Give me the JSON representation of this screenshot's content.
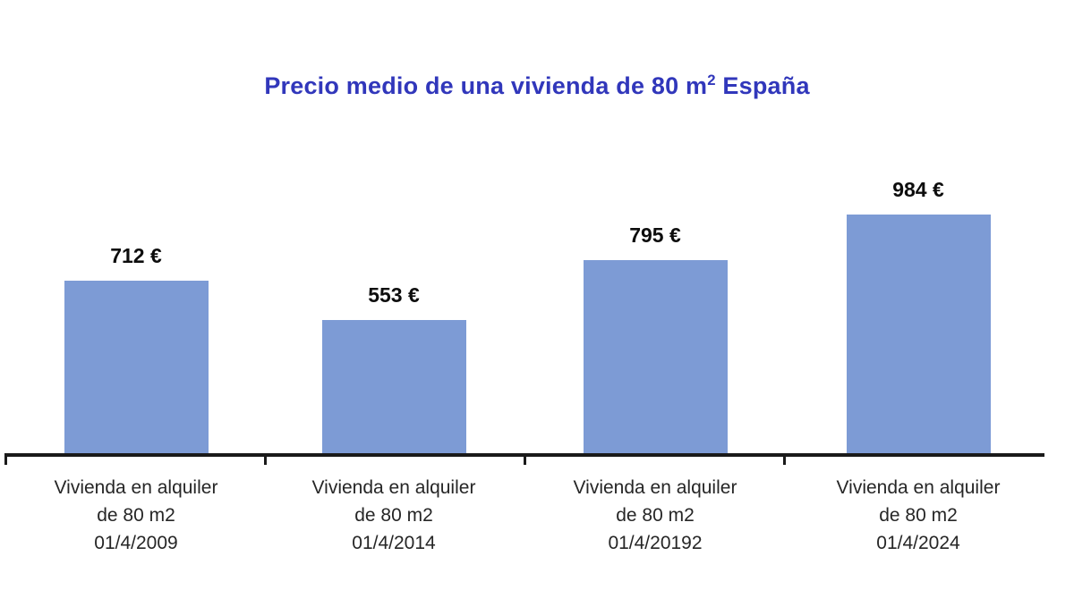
{
  "title": {
    "pre": "Precio medio de una vivienda de 80 m",
    "sup": "2",
    "post": " España",
    "color": "#3137bb"
  },
  "chart_data": {
    "type": "bar",
    "title": "Precio medio de una vivienda de 80 m² España",
    "categories": [
      [
        "Vivienda en alquiler",
        "de 80 m2",
        "01/4/2009"
      ],
      [
        "Vivienda en alquiler",
        "de 80 m2",
        "01/4/2014"
      ],
      [
        "Vivienda en alquiler",
        "de 80 m2",
        "01/4/20192"
      ],
      [
        "Vivienda en alquiler",
        "de 80 m2",
        "01/4/2024"
      ]
    ],
    "values": [
      712,
      553,
      795,
      984
    ],
    "value_labels": [
      "712 €",
      "553 €",
      "795 €",
      "984 €"
    ],
    "unit": "€",
    "xlabel": "",
    "ylabel": "",
    "ylim": [
      0,
      1050
    ],
    "grid": false,
    "legend": null,
    "bar_color": "#7d9bd5",
    "axis_color": "#1a1a1a",
    "label_color": "#262626",
    "value_label_color": "#0d0d0d"
  }
}
